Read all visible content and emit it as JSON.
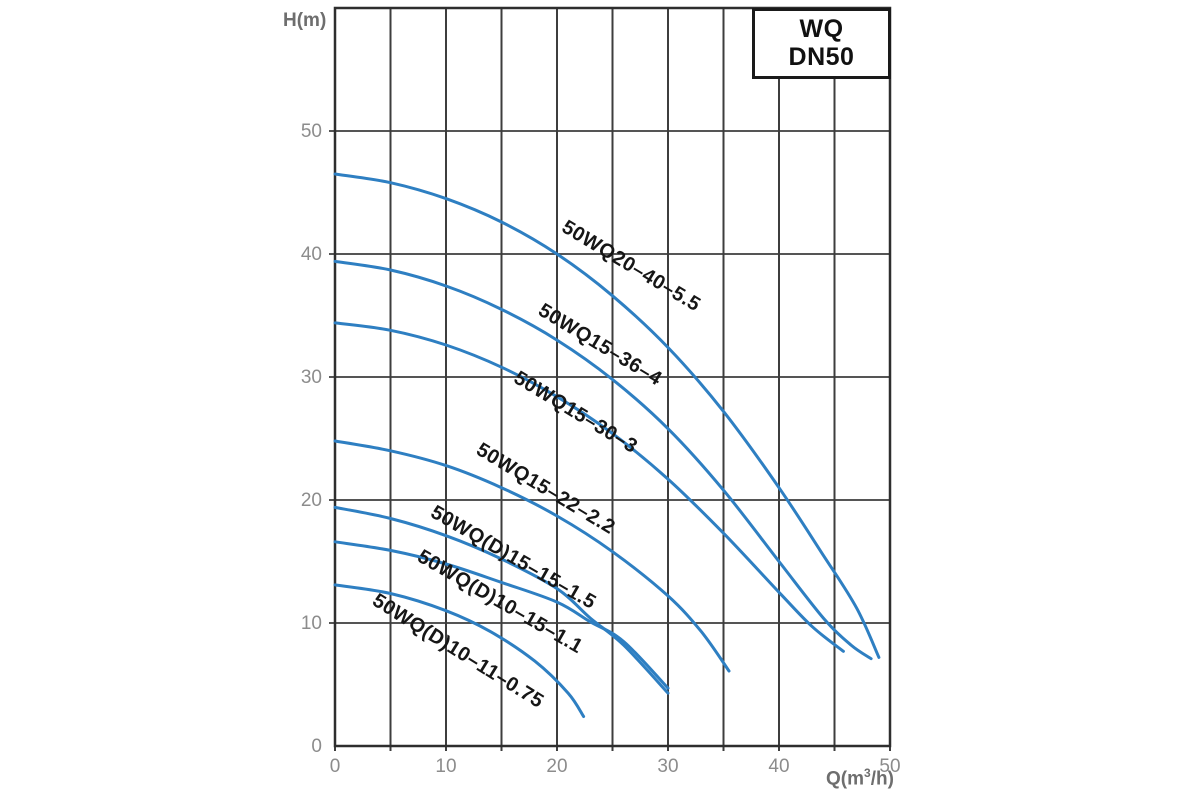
{
  "badge": {
    "line1": "WQ",
    "line2": "DN50"
  },
  "chart_data": {
    "type": "line",
    "title": "",
    "xlabel": "Q(m³/h)",
    "ylabel": "H(m)",
    "xlim": [
      0,
      50
    ],
    "ylim": [
      0,
      60
    ],
    "x_ticks": [
      0,
      10,
      20,
      30,
      40,
      50
    ],
    "y_ticks": [
      0,
      10,
      20,
      30,
      40,
      50
    ],
    "x_grid_step": 5,
    "y_grid_step": 10,
    "grid": "on",
    "legend_position": "inline-labels",
    "curve_color": "#2e7fc2",
    "grid_color": "#3d3d3d",
    "tick_color": "#8c8c8c",
    "label_color": "#161616",
    "series": [
      {
        "name": "50WQ20-40-5.5",
        "points": [
          [
            0,
            46.5
          ],
          [
            5,
            45.8
          ],
          [
            10,
            44.5
          ],
          [
            15,
            42.6
          ],
          [
            20,
            40
          ],
          [
            25,
            36.6
          ],
          [
            30,
            32.4
          ],
          [
            35,
            27.2
          ],
          [
            40,
            21
          ],
          [
            44,
            15.5
          ],
          [
            47,
            11.2
          ],
          [
            49,
            7.2
          ]
        ],
        "label": {
          "q": 26.4,
          "h": 38.6,
          "angle": 31
        }
      },
      {
        "name": "50WQ15-36-4",
        "points": [
          [
            0,
            39.4
          ],
          [
            5,
            38.7
          ],
          [
            10,
            37.4
          ],
          [
            15,
            35.5
          ],
          [
            20,
            33
          ],
          [
            25,
            29.8
          ],
          [
            30,
            25.8
          ],
          [
            35,
            20.8
          ],
          [
            40,
            15
          ],
          [
            44,
            10.4
          ],
          [
            46.5,
            8.2
          ],
          [
            48.3,
            7.1
          ]
        ],
        "label": {
          "q": 23.6,
          "h": 32.2,
          "angle": 31
        }
      },
      {
        "name": "50WQ15-30-3",
        "points": [
          [
            0,
            34.4
          ],
          [
            5,
            33.8
          ],
          [
            10,
            32.6
          ],
          [
            15,
            30.8
          ],
          [
            20,
            28.4
          ],
          [
            25,
            25.4
          ],
          [
            30,
            21.7
          ],
          [
            35,
            17.3
          ],
          [
            40,
            12.5
          ],
          [
            43,
            9.7
          ],
          [
            45.8,
            7.7
          ]
        ],
        "label": {
          "q": 21.4,
          "h": 26.7,
          "angle": 31
        }
      },
      {
        "name": "50WQ15-22-2.2",
        "points": [
          [
            0,
            24.8
          ],
          [
            5,
            24
          ],
          [
            10,
            22.8
          ],
          [
            15,
            21
          ],
          [
            20,
            18.7
          ],
          [
            25,
            15.8
          ],
          [
            30,
            12.2
          ],
          [
            33,
            9.3
          ],
          [
            35.5,
            6.1
          ]
        ],
        "label": {
          "q": 18.7,
          "h": 20.5,
          "angle": 31
        }
      },
      {
        "name": "50WQ(D)15-15-1.5",
        "points": [
          [
            0,
            19.4
          ],
          [
            5,
            18.5
          ],
          [
            10,
            17.1
          ],
          [
            15,
            15.2
          ],
          [
            20,
            12.8
          ],
          [
            23,
            10.4
          ],
          [
            26,
            8.2
          ],
          [
            30,
            4.3
          ]
        ],
        "label": {
          "q": 15.8,
          "h": 14.9,
          "angle": 30
        }
      },
      {
        "name": "50WQ(D)10-15-1.1",
        "points": [
          [
            0,
            16.6
          ],
          [
            5,
            15.9
          ],
          [
            10,
            14.8
          ],
          [
            15,
            13.3
          ],
          [
            20,
            11.7
          ],
          [
            23,
            10.1
          ],
          [
            26,
            8.5
          ],
          [
            30,
            4.7
          ]
        ],
        "label": {
          "q": 14.6,
          "h": 11.3,
          "angle": 30
        }
      },
      {
        "name": "50WQ(D)10-11-0.75",
        "points": [
          [
            0,
            13.1
          ],
          [
            5,
            12.4
          ],
          [
            10,
            11
          ],
          [
            14,
            9.3
          ],
          [
            18,
            6.9
          ],
          [
            21,
            4.3
          ],
          [
            22.4,
            2.4
          ]
        ],
        "label": {
          "q": 10.8,
          "h": 7.3,
          "angle": 32
        }
      }
    ]
  }
}
